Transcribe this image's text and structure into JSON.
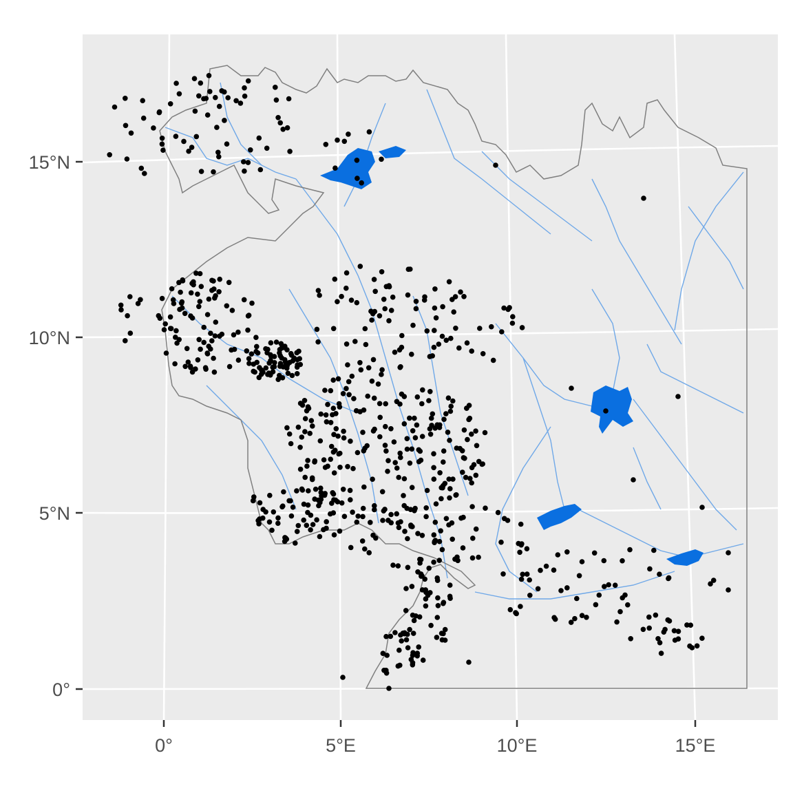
{
  "map": {
    "x_ticks": [
      {
        "lon": 0,
        "label": "0°"
      },
      {
        "lon": 5,
        "label": "5°E"
      },
      {
        "lon": 10,
        "label": "10°E"
      },
      {
        "lon": 15,
        "label": "15°E"
      }
    ],
    "y_ticks": [
      {
        "lat": 0,
        "label": "0°"
      },
      {
        "lat": 5,
        "label": "5°N"
      },
      {
        "lat": 10,
        "label": "10°N"
      },
      {
        "lat": 15,
        "label": "15°N"
      }
    ],
    "colors": {
      "panel": "#ebebeb",
      "grid": "#ffffff",
      "boundary": "#7f7f7f",
      "rivers": "#6fa8e8",
      "lakes": "#0a6fe0",
      "points": "#000000"
    },
    "layers": [
      "study-area-boundary",
      "rivers",
      "lakes",
      "observation-points"
    ]
  }
}
